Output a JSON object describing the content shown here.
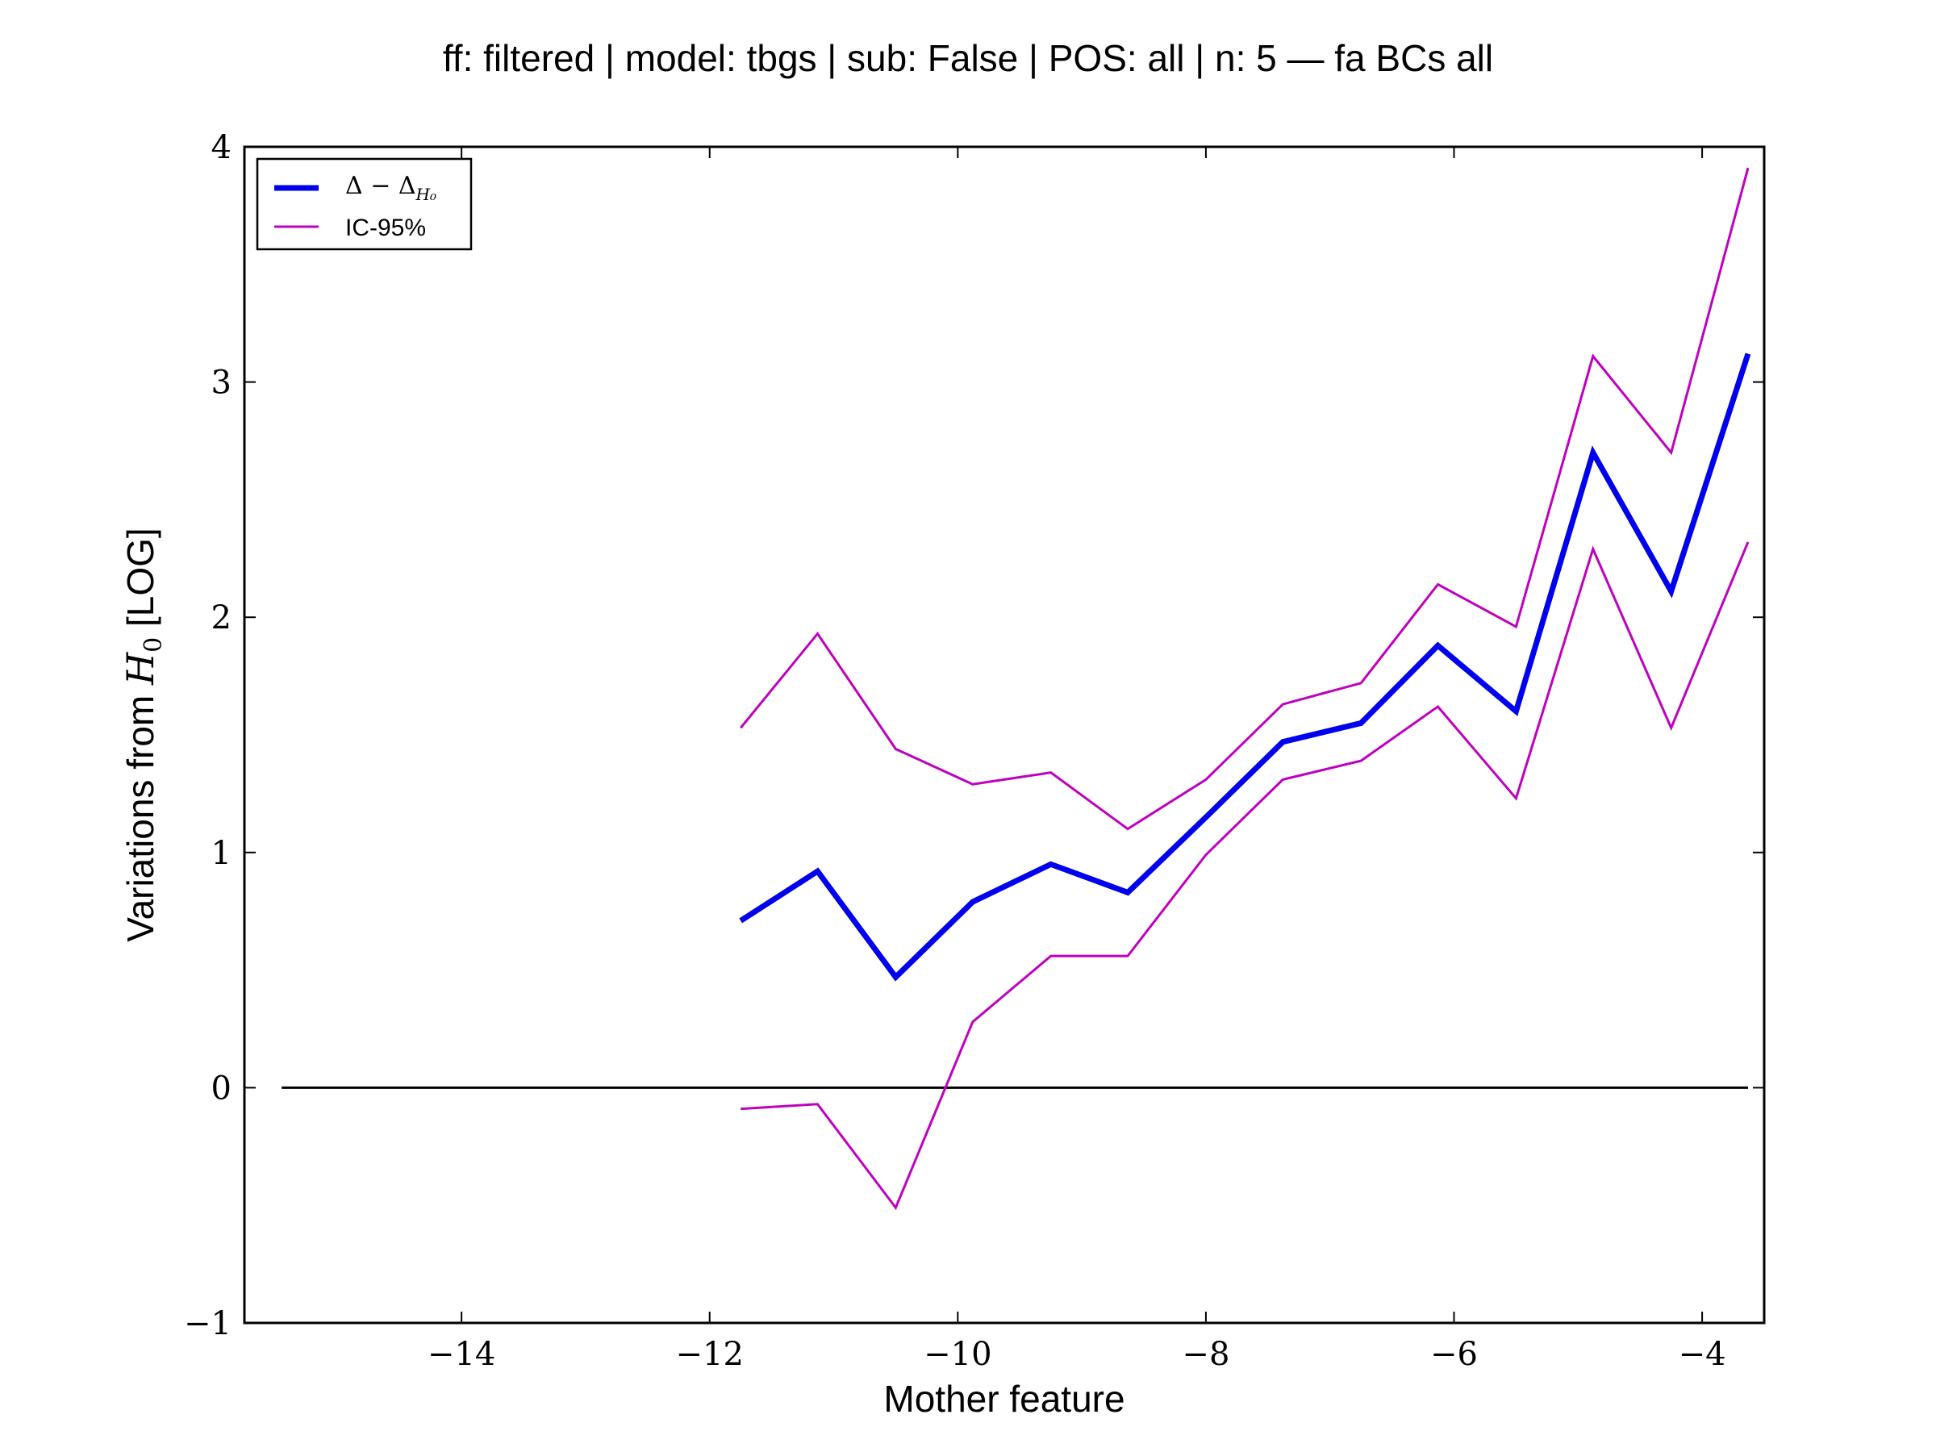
{
  "chart_data": {
    "type": "line",
    "title": "ff: filtered | model: tbgs | sub: False | POS: all | n: 5 — fa BCs all",
    "xlabel": "Mother feature",
    "ylabel_prefix": "Variations from ",
    "ylabel_math": "H",
    "ylabel_math_sub": "0",
    "ylabel_suffix": " [LOG]",
    "xlim": [
      -15.75,
      -3.5
    ],
    "ylim": [
      -1,
      4
    ],
    "xticks": [
      -14,
      -12,
      -10,
      -8,
      -6,
      -4
    ],
    "xtick_labels": [
      "−14",
      "−12",
      "−10",
      "−8",
      "−6",
      "−4"
    ],
    "yticks": [
      -1,
      0,
      1,
      2,
      3,
      4
    ],
    "ytick_labels": [
      "−1",
      "0",
      "1",
      "2",
      "3",
      "4"
    ],
    "grid": false,
    "legend": {
      "placement": "top-left",
      "entries": [
        {
          "label": "Δ − Δ",
          "label_sub": "H₀",
          "color": "#0000ee",
          "width": "thick"
        },
        {
          "label": "IC-95%",
          "color": "#bf00bf",
          "width": "thin"
        }
      ]
    },
    "x": [
      -11.75,
      -11.13,
      -10.5,
      -9.88,
      -9.25,
      -8.63,
      -8.0,
      -7.38,
      -6.75,
      -6.13,
      -5.5,
      -4.88,
      -4.25,
      -3.63
    ],
    "series": [
      {
        "key": "delta",
        "color": "#0000ee",
        "values": [
          0.71,
          0.92,
          0.47,
          0.79,
          0.95,
          0.83,
          1.15,
          1.47,
          1.55,
          1.88,
          1.6,
          2.7,
          2.11,
          3.12
        ]
      },
      {
        "key": "ci_upper",
        "color": "#bf00bf",
        "values": [
          1.53,
          1.93,
          1.44,
          1.29,
          1.34,
          1.1,
          1.31,
          1.63,
          1.72,
          2.14,
          1.96,
          3.11,
          2.7,
          3.91
        ]
      },
      {
        "key": "ci_lower",
        "color": "#bf00bf",
        "values": [
          -0.09,
          -0.07,
          -0.51,
          0.28,
          0.56,
          0.56,
          0.99,
          1.31,
          1.39,
          1.62,
          1.23,
          2.29,
          1.53,
          2.32
        ]
      }
    ],
    "reference_line": {
      "y": 0,
      "x_range": [
        -15.45,
        -3.63
      ],
      "color": "#000000"
    }
  }
}
